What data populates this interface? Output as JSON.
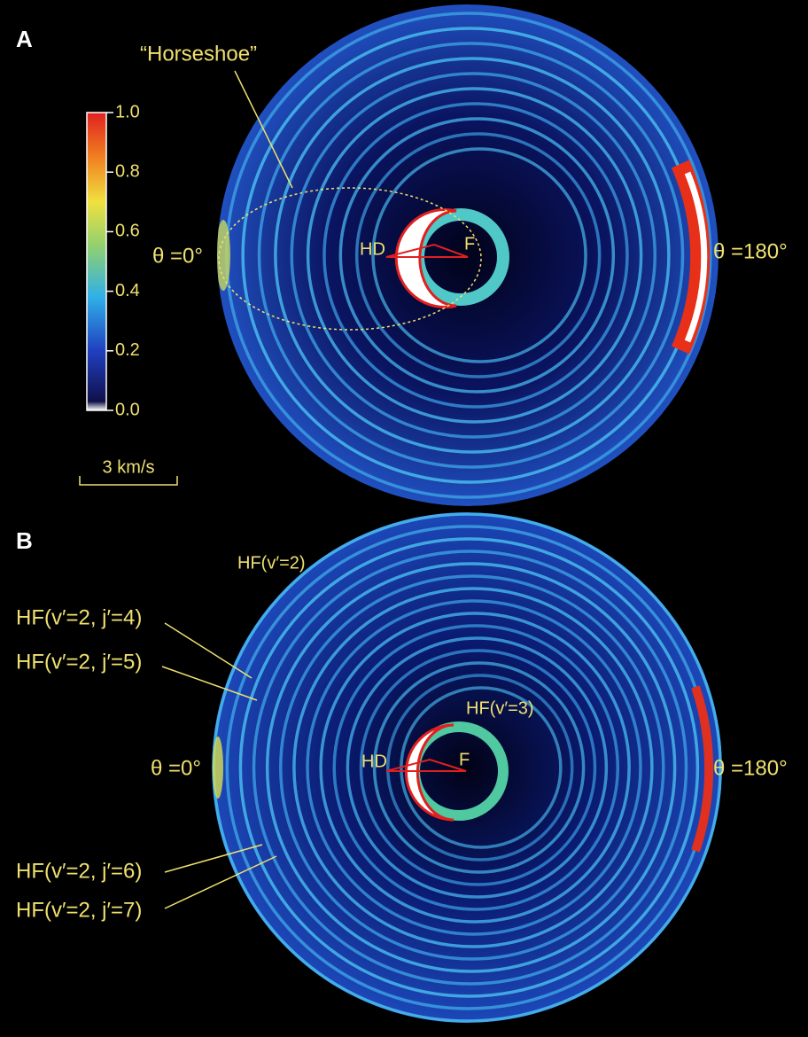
{
  "panel_a": {
    "label": "A",
    "horseshoe": "“Horseshoe”",
    "theta_left": "θ =0°",
    "theta_right": "θ =180°",
    "hd": "HD",
    "f": "F",
    "scale_bar": "3 km/s",
    "colorbar": {
      "ticks": [
        {
          "value": 0,
          "label": "0.0"
        },
        {
          "value": 0.2,
          "label": "0.2"
        },
        {
          "value": 0.4,
          "label": "0.4"
        },
        {
          "value": 0.6,
          "label": "0.6"
        },
        {
          "value": 0.8,
          "label": "0.8"
        },
        {
          "value": 1,
          "label": "1.0"
        }
      ]
    }
  },
  "panel_b": {
    "label": "B",
    "hf_v2": "HF(v′=2)",
    "hf_v3": "HF(v′=3)",
    "j4": "HF(v′=2, j′=4)",
    "j5": "HF(v′=2, j′=5)",
    "j6": "HF(v′=2, j′=6)",
    "j7": "HF(v′=2, j′=7)",
    "theta_left": "θ =0°",
    "theta_right": "θ =180°",
    "hd": "HD",
    "f": "F"
  }
}
